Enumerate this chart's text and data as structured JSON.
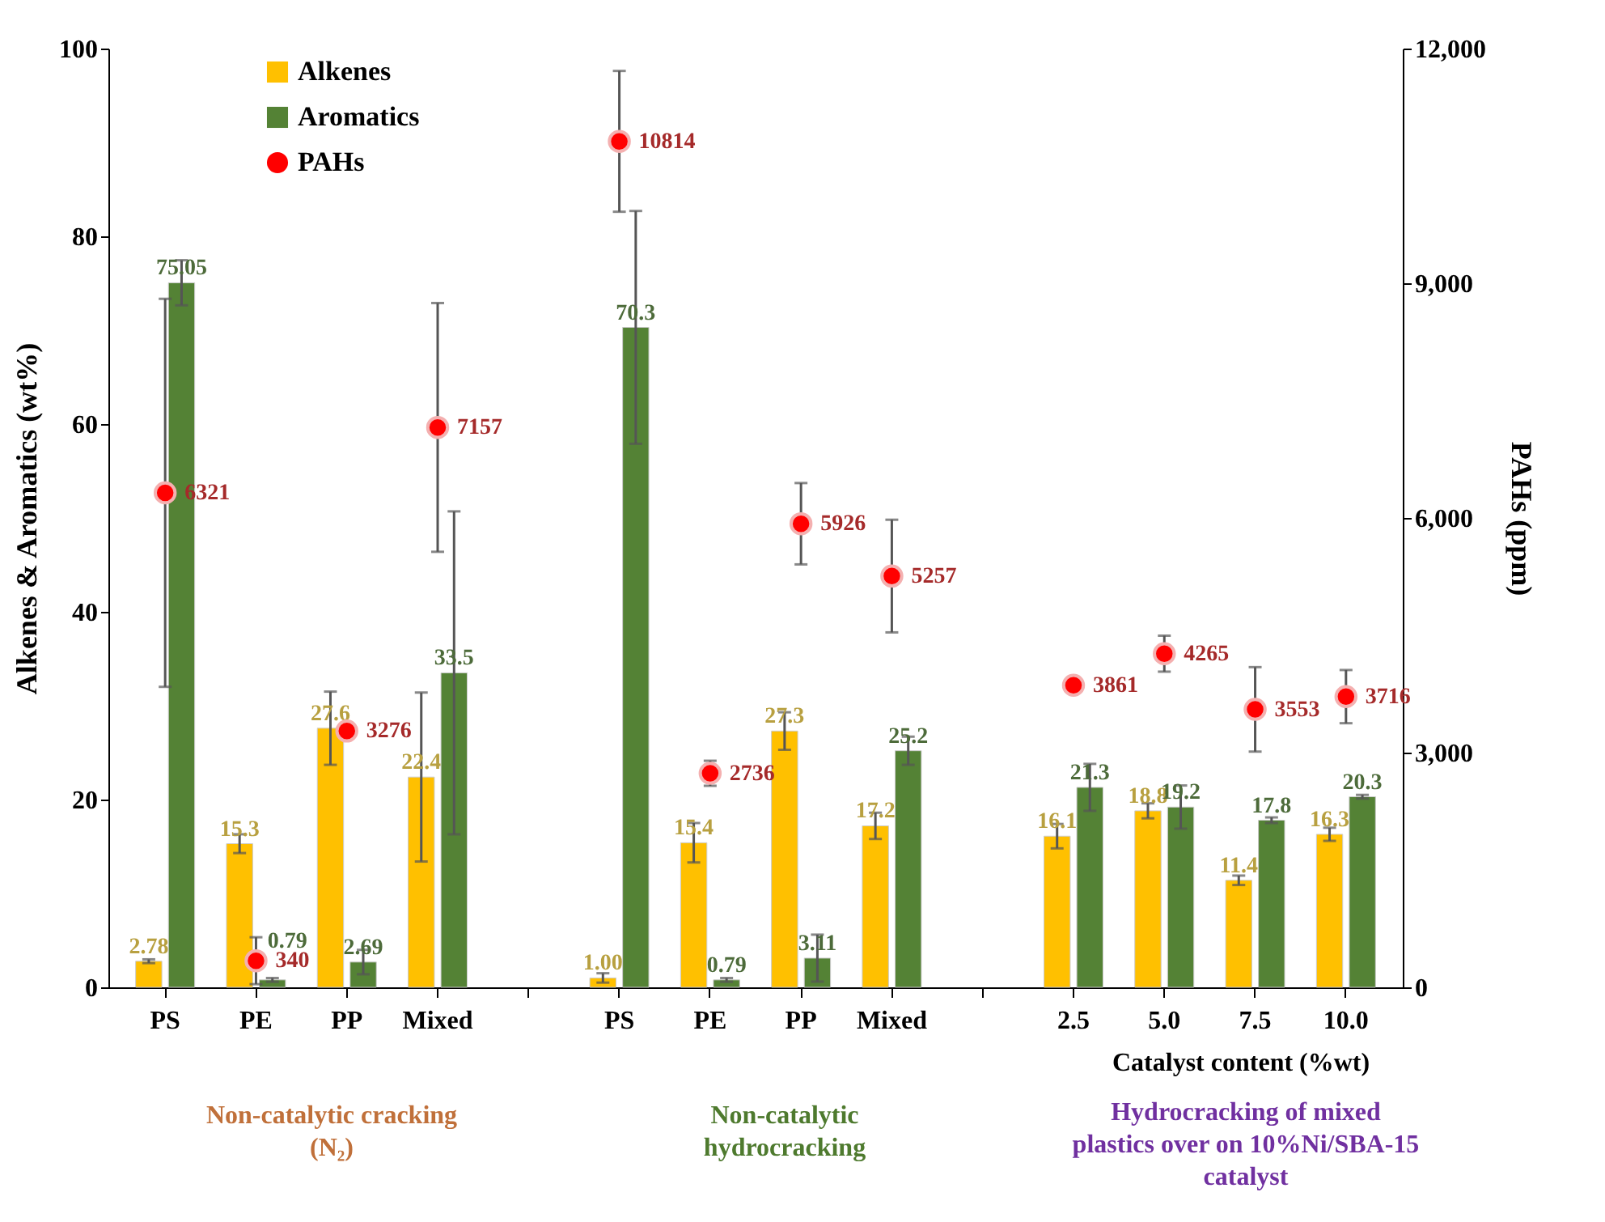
{
  "chart_data": {
    "type": "bar",
    "categories": [
      "PS",
      "PE",
      "PP",
      "Mixed",
      null,
      "PS",
      "PE",
      "PP",
      "Mixed",
      null,
      "2.5",
      "5.0",
      "7.5",
      "10.0"
    ],
    "series": [
      {
        "name": "Alkenes",
        "type": "bar",
        "color": "#ffc000",
        "values": [
          2.78,
          15.3,
          27.6,
          22.4,
          null,
          1.0,
          15.4,
          27.3,
          17.2,
          null,
          16.1,
          18.8,
          11.4,
          16.3
        ],
        "value_labels": [
          "2.78",
          "15.3",
          "27.6",
          "22.4",
          null,
          "1.00",
          "15.4",
          "27.3",
          "17.2",
          null,
          "16.1",
          "18.8",
          "11.4",
          "16.3"
        ],
        "errors": [
          0.2,
          1.0,
          3.9,
          9,
          null,
          0.5,
          2.1,
          2,
          1.4,
          null,
          1.3,
          0.8,
          0.5,
          0.7
        ]
      },
      {
        "name": "Aromatics",
        "type": "bar",
        "color": "#548235",
        "values": [
          75.05,
          0.79,
          2.69,
          33.5,
          null,
          70.3,
          0.79,
          3.11,
          25.2,
          null,
          21.3,
          19.2,
          17.8,
          20.3
        ],
        "value_labels": [
          "75.05",
          "0.79",
          "2.69",
          "33.5",
          null,
          "70.3",
          "0.79",
          "3.11",
          "25.2",
          null,
          "21.3",
          "19.2",
          "17.8",
          "20.3"
        ],
        "errors": [
          2.4,
          0.2,
          1.3,
          17.2,
          null,
          12.4,
          0.2,
          2.5,
          1.5,
          null,
          2.5,
          2.3,
          0.3,
          0.2
        ]
      },
      {
        "name": "PAHs",
        "type": "scatter",
        "axis": "y2",
        "color": "#ff0000",
        "values": [
          6321,
          340,
          3276,
          7157,
          null,
          10814,
          2736,
          5926,
          5257,
          null,
          3861,
          4265,
          3553,
          3716
        ],
        "value_labels": [
          "6321",
          "340",
          "3276",
          "7157",
          null,
          "10814",
          "2736",
          "5926",
          "5257",
          null,
          "3861",
          "4265",
          "3553",
          "3716"
        ],
        "errors": [
          2480,
          300,
          null,
          1590,
          null,
          900,
          160,
          520,
          720,
          null,
          null,
          230,
          540,
          340
        ]
      }
    ],
    "ylabel": "Alkenes & Aromatics (wt%)",
    "y2label": "PAHs (ppm)",
    "xlabel": "Catalyst content (%wt)",
    "ylim": [
      0,
      100
    ],
    "yticks": [
      0,
      20,
      40,
      60,
      80,
      100
    ],
    "y2lim": [
      0,
      12000
    ],
    "y2ticks": [
      0,
      {
        "value": 3000,
        "label": "3,000"
      },
      {
        "value": 6000,
        "label": "6,000"
      },
      {
        "value": 9000,
        "label": "9,000"
      },
      {
        "value": 12000,
        "label": "12,000"
      }
    ],
    "marker": "circle",
    "legend": "top left",
    "grid": false,
    "annotations": [
      "Non-catalytic cracking  (N₂)",
      "Non-catalytic hydrocracking",
      "Hydrocracking of mixed plastics over on 10%Ni/SBA-15 catalyst"
    ]
  }
}
